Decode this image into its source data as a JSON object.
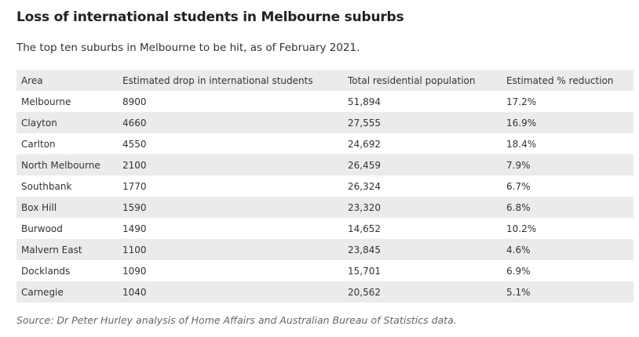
{
  "header": {
    "title": "Loss of international students in Melbourne suburbs",
    "subtitle": "The top ten suburbs in Melbourne to be hit, as of February 2021."
  },
  "table": {
    "columns": [
      "Area",
      "Estimated drop in international students",
      "Total residential population",
      "Estimated % reduction"
    ],
    "rows": [
      [
        "Melbourne",
        "8900",
        "51,894",
        "17.2%"
      ],
      [
        "Clayton",
        "4660",
        "27,555",
        "16.9%"
      ],
      [
        "Carlton",
        "4550",
        "24,692",
        "18.4%"
      ],
      [
        "North Melbourne",
        "2100",
        "26,459",
        "7.9%"
      ],
      [
        "Southbank",
        "1770",
        "26,324",
        "6.7%"
      ],
      [
        "Box Hill",
        "1590",
        "23,320",
        "6.8%"
      ],
      [
        "Burwood",
        "1490",
        "14,652",
        "10.2%"
      ],
      [
        "Malvern East",
        "1100",
        "23,845",
        "4.6%"
      ],
      [
        "Docklands",
        "1090",
        "15,701",
        "6.9%"
      ],
      [
        "Carnegie",
        "1040",
        "20,562",
        "5.1%"
      ]
    ]
  },
  "footer": {
    "source": "Source: Dr Peter Hurley analysis of Home Affairs and Australian Bureau of Statistics data."
  }
}
